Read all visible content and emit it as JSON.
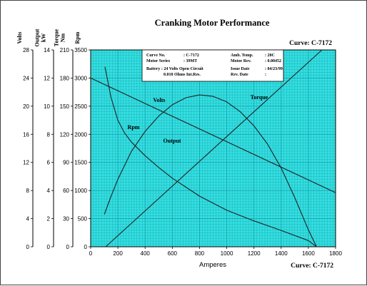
{
  "chart_data": {
    "type": "line",
    "title": "Cranking Motor Performance",
    "curve_label": "Curve: C-7172",
    "xlabel": "Amperes",
    "xlim": [
      0,
      1800
    ],
    "x_ticks": [
      "0",
      "200",
      "400",
      "600",
      "800",
      "1000",
      "1200",
      "1400",
      "1600",
      "1800"
    ],
    "grid": true,
    "plot_background": "#33e0e0",
    "grid_color": "#1a9fb0",
    "axes": [
      {
        "key": "volts",
        "label": "Volts",
        "lim": [
          0,
          28
        ],
        "ticks": [
          "0",
          "4",
          "8",
          "12",
          "16",
          "20",
          "24",
          "28"
        ]
      },
      {
        "key": "kw",
        "label": "Output kW",
        "lim": [
          0,
          14
        ],
        "ticks": [
          "0",
          "2",
          "4",
          "6",
          "8",
          "10",
          "12",
          "14"
        ]
      },
      {
        "key": "nm",
        "label": "Torque Nm",
        "lim": [
          0,
          210
        ],
        "ticks": [
          "0",
          "30",
          "60",
          "90",
          "120",
          "150",
          "180",
          "210"
        ]
      },
      {
        "key": "rpm",
        "label": "Rpm",
        "lim": [
          0,
          3500
        ],
        "ticks": [
          "0",
          "500",
          "1000",
          "1500",
          "2000",
          "2500",
          "3000",
          "3500"
        ]
      }
    ],
    "series": [
      {
        "name": "Volts",
        "axis": "volts",
        "x": [
          0,
          1800
        ],
        "y": [
          24,
          7.7
        ]
      },
      {
        "name": "Rpm",
        "axis": "rpm",
        "x": [
          105,
          150,
          200,
          250,
          300,
          400,
          500,
          600,
          800,
          1000,
          1200,
          1400,
          1600,
          1660
        ],
        "y": [
          3200,
          2650,
          2250,
          2020,
          1860,
          1620,
          1410,
          1220,
          900,
          650,
          460,
          290,
          110,
          0
        ]
      },
      {
        "name": "Output",
        "axis": "kw",
        "x": [
          100,
          150,
          200,
          300,
          400,
          500,
          600,
          700,
          800,
          900,
          1000,
          1100,
          1200,
          1300,
          1400,
          1500,
          1600,
          1660
        ],
        "y": [
          2.3,
          3.6,
          4.8,
          6.8,
          8.2,
          9.3,
          10.1,
          10.6,
          10.8,
          10.7,
          10.3,
          9.6,
          8.6,
          7.3,
          5.6,
          3.5,
          1.2,
          0
        ]
      },
      {
        "name": "Torque",
        "axis": "nm",
        "x": [
          110,
          1700
        ],
        "y": [
          0,
          210
        ]
      }
    ],
    "info_box": {
      "rows": [
        {
          "a": "Curve No.",
          "b": ": C-7172",
          "c": "Amb. Temp.",
          "d": ": 20C"
        },
        {
          "a": "Motor Series",
          "b": ": 39MT",
          "c": "Motor Rev.",
          "d": ": 0.00452"
        },
        {
          "a": "Battery : 24 Volts Open Circuit",
          "b": "",
          "c": "Issue Date",
          "d": ": 04/23/99"
        },
        {
          "a": "0.010 Ohms Int.Res.",
          "b": "",
          "c": "Rev. Date",
          "d": ":"
        }
      ]
    }
  }
}
